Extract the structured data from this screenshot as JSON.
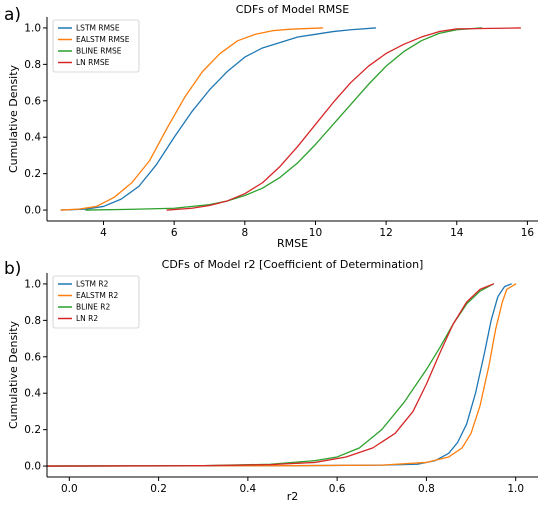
{
  "panels": [
    {
      "letter": "a)",
      "chart_data": {
        "type": "line",
        "title": "CDFs of Model RMSE",
        "xlabel": "RMSE",
        "ylabel": "Cumulative Density",
        "xlim": [
          2.4,
          16.3
        ],
        "ylim": [
          -0.06,
          1.06
        ],
        "xticks": [
          "4",
          "6",
          "8",
          "10",
          "12",
          "14",
          "16"
        ],
        "yticks": [
          "0.0",
          "0.2",
          "0.4",
          "0.6",
          "0.8",
          "1.0"
        ],
        "legend_position": "top-left",
        "grid": false,
        "series": [
          {
            "name": "LSTM RMSE",
            "color": "#1f77b4",
            "points": [
              [
                2.8,
                0
              ],
              [
                3.5,
                0.005
              ],
              [
                4.0,
                0.02
              ],
              [
                4.5,
                0.06
              ],
              [
                5.0,
                0.13
              ],
              [
                5.5,
                0.25
              ],
              [
                6.0,
                0.4
              ],
              [
                6.5,
                0.54
              ],
              [
                7.0,
                0.66
              ],
              [
                7.5,
                0.76
              ],
              [
                8.0,
                0.84
              ],
              [
                8.5,
                0.89
              ],
              [
                9.0,
                0.92
              ],
              [
                9.5,
                0.95
              ],
              [
                10.0,
                0.965
              ],
              [
                10.5,
                0.98
              ],
              [
                11.0,
                0.99
              ],
              [
                11.7,
                1.0
              ]
            ]
          },
          {
            "name": "EALSTM RMSE",
            "color": "#ff7f0e",
            "points": [
              [
                2.8,
                0
              ],
              [
                3.3,
                0.005
              ],
              [
                3.8,
                0.02
              ],
              [
                4.3,
                0.07
              ],
              [
                4.8,
                0.15
              ],
              [
                5.3,
                0.27
              ],
              [
                5.8,
                0.45
              ],
              [
                6.3,
                0.62
              ],
              [
                6.8,
                0.76
              ],
              [
                7.3,
                0.86
              ],
              [
                7.8,
                0.93
              ],
              [
                8.3,
                0.965
              ],
              [
                8.8,
                0.985
              ],
              [
                9.3,
                0.993
              ],
              [
                10.2,
                1.0
              ]
            ]
          },
          {
            "name": "BLINE RMSE",
            "color": "#2ca02c",
            "points": [
              [
                3.5,
                0
              ],
              [
                5.0,
                0.005
              ],
              [
                6.0,
                0.01
              ],
              [
                7.0,
                0.03
              ],
              [
                7.5,
                0.05
              ],
              [
                8.0,
                0.08
              ],
              [
                8.5,
                0.12
              ],
              [
                9.0,
                0.18
              ],
              [
                9.5,
                0.26
              ],
              [
                10.0,
                0.36
              ],
              [
                10.5,
                0.47
              ],
              [
                11.0,
                0.58
              ],
              [
                11.5,
                0.69
              ],
              [
                12.0,
                0.79
              ],
              [
                12.5,
                0.87
              ],
              [
                13.0,
                0.93
              ],
              [
                13.5,
                0.97
              ],
              [
                14.0,
                0.99
              ],
              [
                14.7,
                1.0
              ]
            ]
          },
          {
            "name": "LN RMSE",
            "color": "#d62728",
            "points": [
              [
                5.8,
                0
              ],
              [
                6.5,
                0.01
              ],
              [
                7.0,
                0.025
              ],
              [
                7.5,
                0.05
              ],
              [
                8.0,
                0.09
              ],
              [
                8.5,
                0.15
              ],
              [
                9.0,
                0.24
              ],
              [
                9.5,
                0.35
              ],
              [
                10.0,
                0.47
              ],
              [
                10.5,
                0.59
              ],
              [
                11.0,
                0.7
              ],
              [
                11.5,
                0.79
              ],
              [
                12.0,
                0.86
              ],
              [
                12.5,
                0.91
              ],
              [
                13.0,
                0.95
              ],
              [
                13.5,
                0.98
              ],
              [
                14.0,
                0.995
              ],
              [
                15.8,
                1.0
              ]
            ]
          }
        ]
      }
    },
    {
      "letter": "b)",
      "chart_data": {
        "type": "line",
        "title": "CDFs of Model r2 [Coefficient of Determination]",
        "xlabel": "r2",
        "ylabel": "Cumulative Density",
        "xlim": [
          -0.05,
          1.05
        ],
        "ylim": [
          -0.06,
          1.06
        ],
        "xticks": [
          "0.0",
          "0.2",
          "0.4",
          "0.6",
          "0.8",
          "1.0"
        ],
        "yticks": [
          "0.0",
          "0.2",
          "0.4",
          "0.6",
          "0.8",
          "1.0"
        ],
        "legend_position": "top-left",
        "grid": false,
        "series": [
          {
            "name": "LSTM R2",
            "color": "#1f77b4",
            "points": [
              [
                -0.05,
                0
              ],
              [
                0.5,
                0.002
              ],
              [
                0.7,
                0.005
              ],
              [
                0.78,
                0.01
              ],
              [
                0.82,
                0.03
              ],
              [
                0.85,
                0.07
              ],
              [
                0.87,
                0.13
              ],
              [
                0.89,
                0.23
              ],
              [
                0.91,
                0.4
              ],
              [
                0.93,
                0.62
              ],
              [
                0.945,
                0.8
              ],
              [
                0.96,
                0.93
              ],
              [
                0.975,
                0.985
              ],
              [
                0.99,
                1.0
              ]
            ]
          },
          {
            "name": "EALSTM R2",
            "color": "#ff7f0e",
            "points": [
              [
                -0.05,
                0
              ],
              [
                0.5,
                0.002
              ],
              [
                0.7,
                0.005
              ],
              [
                0.8,
                0.02
              ],
              [
                0.85,
                0.05
              ],
              [
                0.88,
                0.1
              ],
              [
                0.9,
                0.18
              ],
              [
                0.92,
                0.33
              ],
              [
                0.94,
                0.55
              ],
              [
                0.955,
                0.75
              ],
              [
                0.97,
                0.9
              ],
              [
                0.98,
                0.97
              ],
              [
                1.0,
                1.0
              ]
            ]
          },
          {
            "name": "BLINE R2",
            "color": "#2ca02c",
            "points": [
              [
                -0.05,
                0
              ],
              [
                0.3,
                0.002
              ],
              [
                0.45,
                0.01
              ],
              [
                0.55,
                0.03
              ],
              [
                0.6,
                0.05
              ],
              [
                0.65,
                0.1
              ],
              [
                0.7,
                0.2
              ],
              [
                0.75,
                0.35
              ],
              [
                0.8,
                0.53
              ],
              [
                0.83,
                0.65
              ],
              [
                0.86,
                0.78
              ],
              [
                0.89,
                0.89
              ],
              [
                0.92,
                0.96
              ],
              [
                0.95,
                1.0
              ]
            ]
          },
          {
            "name": "LN R2",
            "color": "#d62728",
            "points": [
              [
                -0.05,
                0
              ],
              [
                0.3,
                0.002
              ],
              [
                0.45,
                0.008
              ],
              [
                0.55,
                0.02
              ],
              [
                0.62,
                0.05
              ],
              [
                0.68,
                0.1
              ],
              [
                0.73,
                0.18
              ],
              [
                0.77,
                0.3
              ],
              [
                0.8,
                0.45
              ],
              [
                0.83,
                0.62
              ],
              [
                0.86,
                0.78
              ],
              [
                0.89,
                0.9
              ],
              [
                0.92,
                0.97
              ],
              [
                0.95,
                1.0
              ]
            ]
          }
        ]
      }
    }
  ]
}
